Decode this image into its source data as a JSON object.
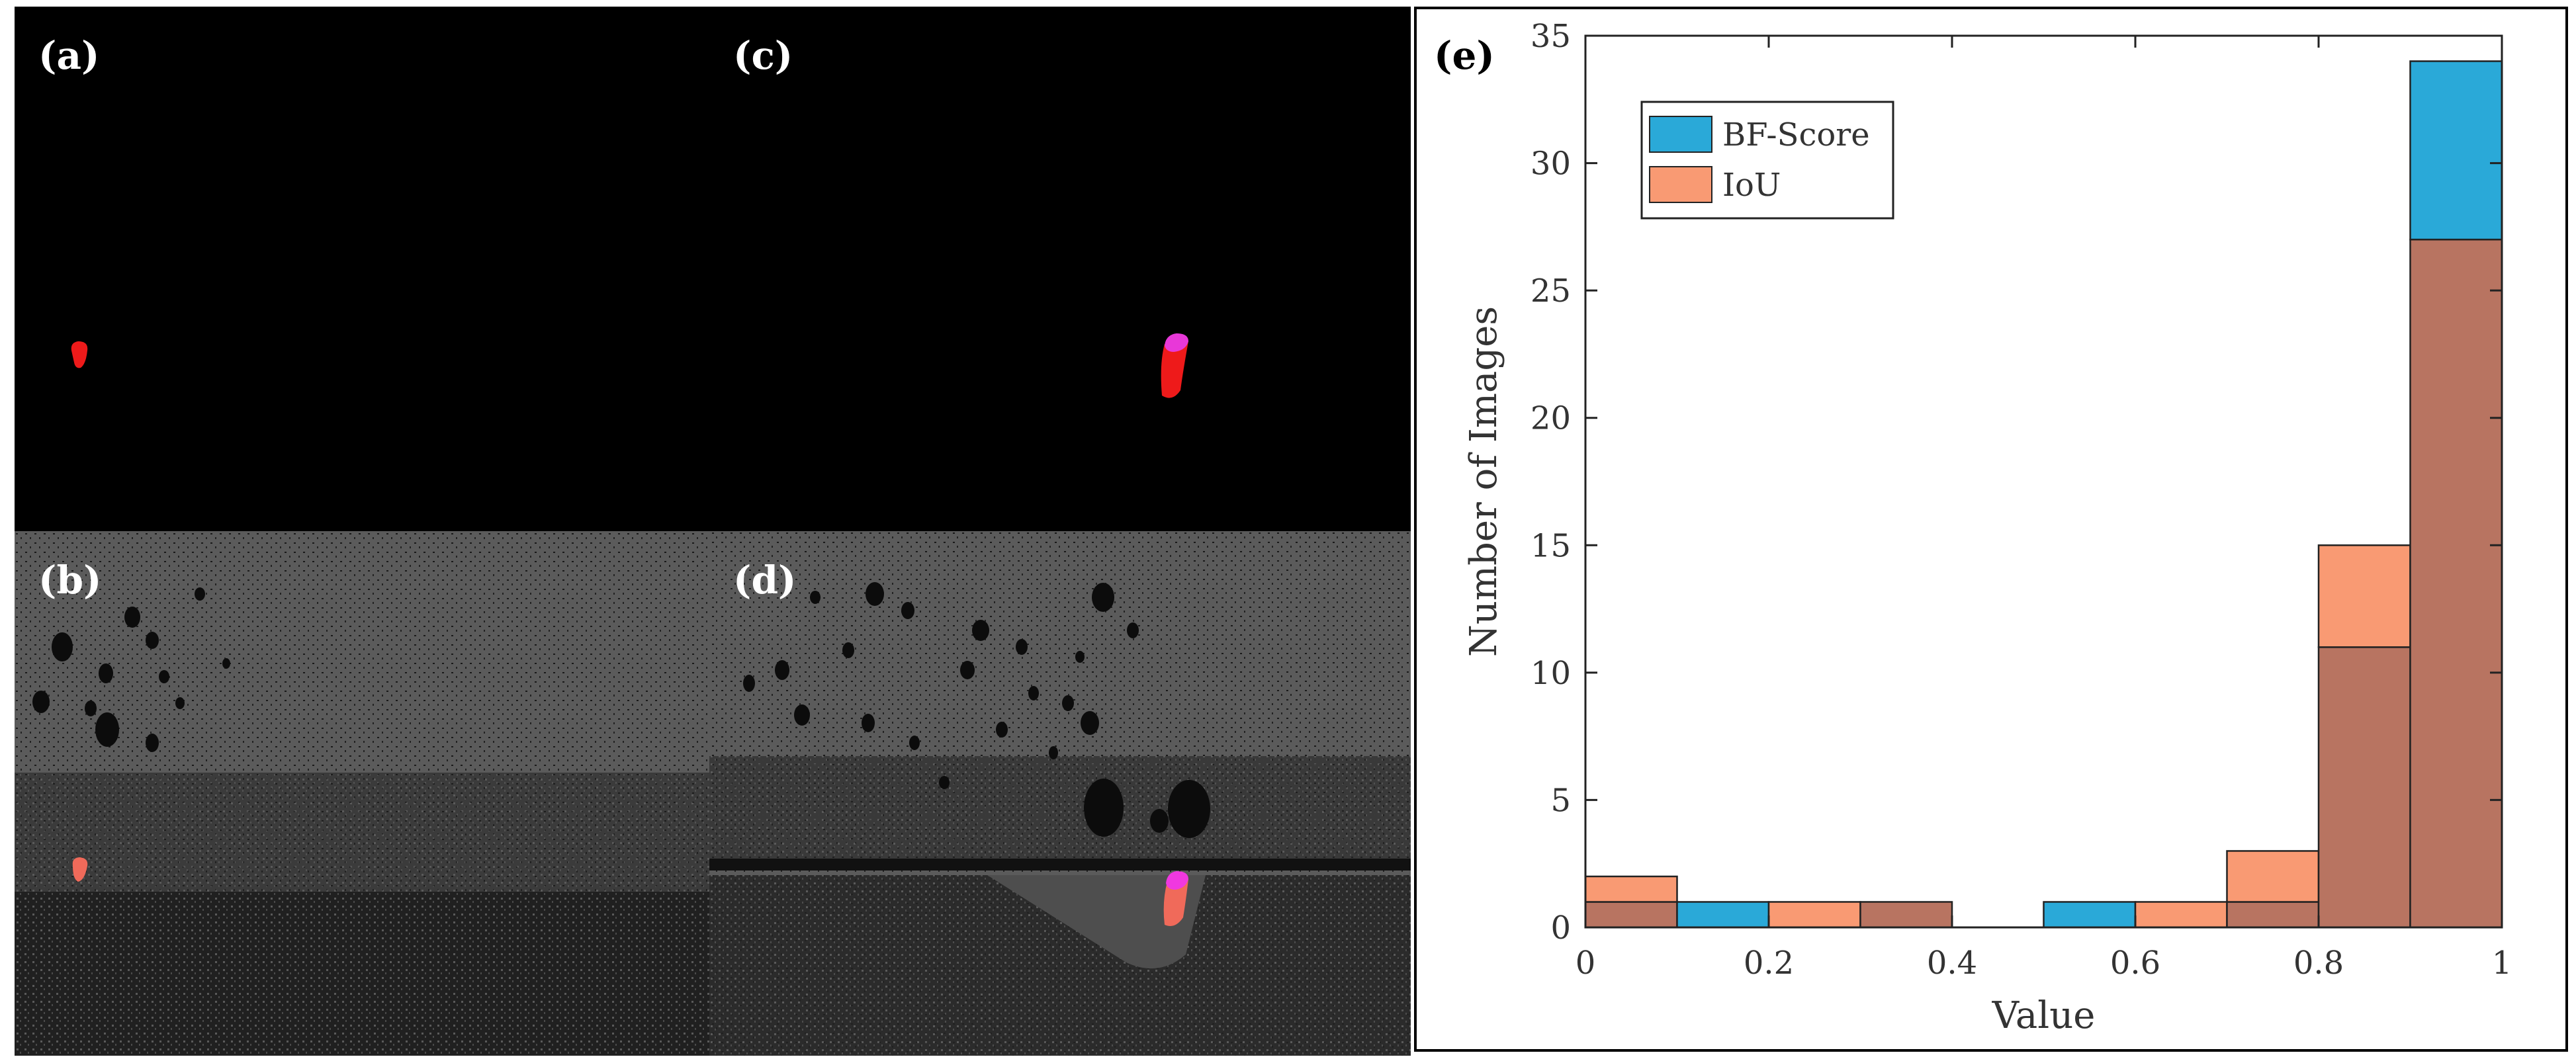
{
  "panels": [
    {
      "id": "a",
      "label": "(a)"
    },
    {
      "id": "b",
      "label": "(b)"
    },
    {
      "id": "c",
      "label": "(c)"
    },
    {
      "id": "d",
      "label": "(d)"
    }
  ],
  "chart_data": {
    "type": "bar",
    "panel_label": "(e)",
    "title": "",
    "xlabel": "Value",
    "ylabel": "Number of Images",
    "xlim": [
      0,
      1
    ],
    "ylim": [
      0,
      35
    ],
    "bin_edges": [
      0,
      0.1,
      0.2,
      0.3,
      0.4,
      0.5,
      0.6,
      0.7,
      0.8,
      0.9,
      1.0
    ],
    "x_ticks": [
      {
        "v": 0,
        "label": "0"
      },
      {
        "v": 0.2,
        "label": "0.2"
      },
      {
        "v": 0.4,
        "label": "0.4"
      },
      {
        "v": 0.6,
        "label": "0.6"
      },
      {
        "v": 0.8,
        "label": "0.8"
      },
      {
        "v": 1,
        "label": "1"
      }
    ],
    "y_ticks": [
      {
        "v": 0,
        "label": "0"
      },
      {
        "v": 5,
        "label": "5"
      },
      {
        "v": 10,
        "label": "10"
      },
      {
        "v": 15,
        "label": "15"
      },
      {
        "v": 20,
        "label": "20"
      },
      {
        "v": 25,
        "label": "25"
      },
      {
        "v": 30,
        "label": "30"
      },
      {
        "v": 35,
        "label": "35"
      }
    ],
    "series": [
      {
        "name": "BF-Score",
        "color": "#2aa9d8",
        "values": [
          1,
          1,
          0,
          1,
          0,
          1,
          0,
          1,
          11,
          34
        ]
      },
      {
        "name": "IoU",
        "color": "#f99a73",
        "values": [
          2,
          0,
          1,
          1,
          0,
          0,
          1,
          3,
          15,
          27
        ]
      }
    ],
    "overlap_color": "#b87461",
    "legend_position": "top-left"
  }
}
